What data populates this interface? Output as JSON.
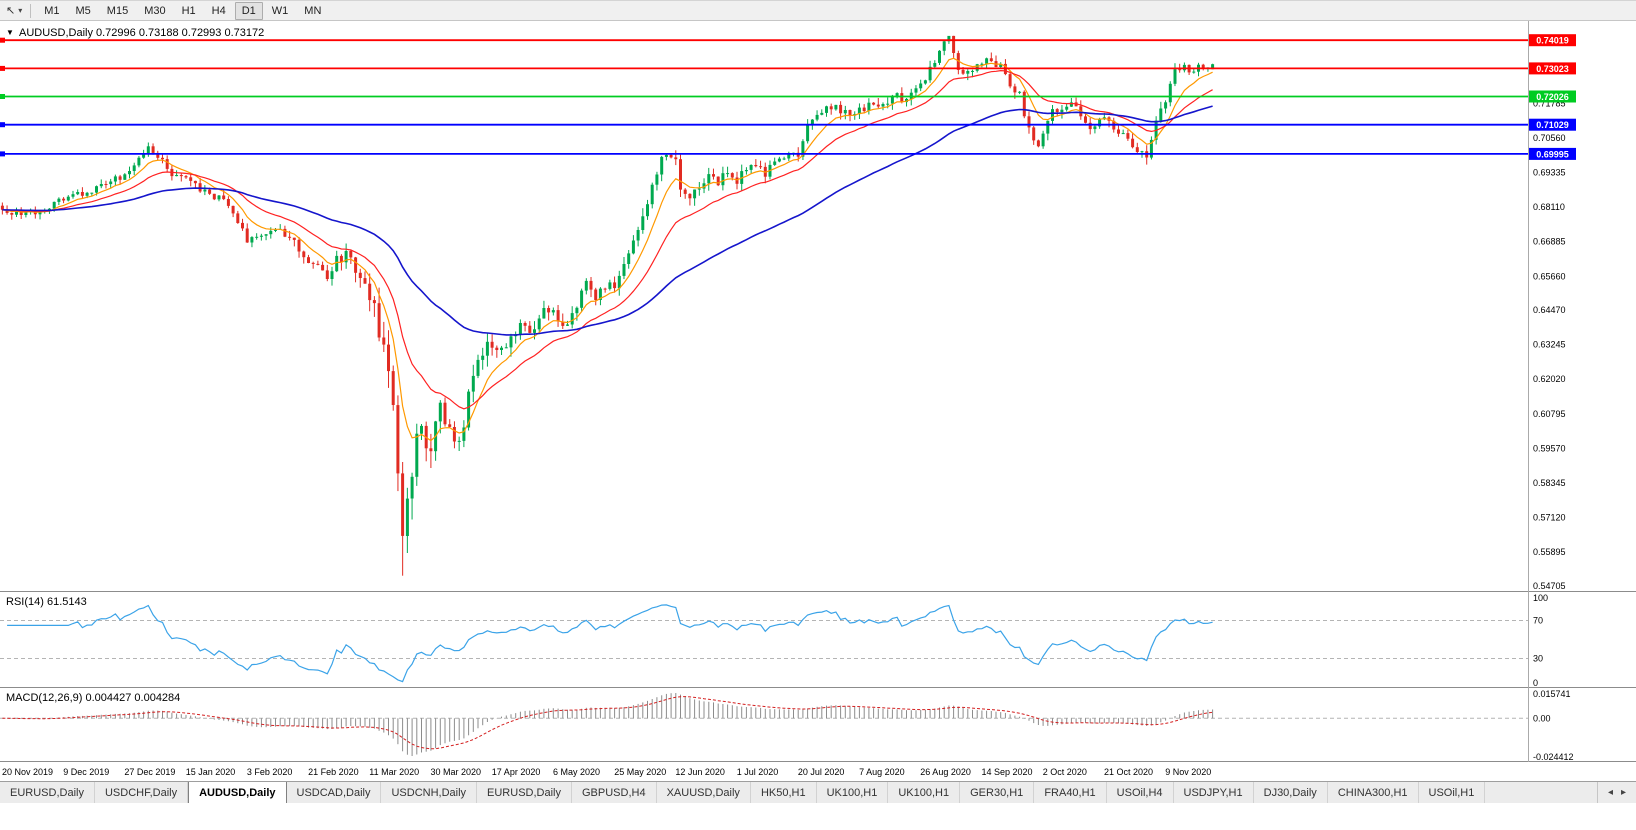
{
  "toolbar": {
    "cursor_glyph": "↖",
    "caret_glyph": "▾",
    "timeframes": [
      "M1",
      "M5",
      "M15",
      "M30",
      "H1",
      "H4",
      "D1",
      "W1",
      "MN"
    ],
    "active_timeframe": "D1"
  },
  "chart": {
    "collapse_glyph": "▼",
    "title_line": "AUDUSD,Daily  0.72996 0.73188 0.72993 0.73172",
    "symbol": "AUDUSD",
    "period": "Daily",
    "levels": [
      {
        "value": 0.74019,
        "label": "0.74019",
        "color": "#ff0000"
      },
      {
        "value": 0.73023,
        "label": "0.73023",
        "color": "#ff0000"
      },
      {
        "value": 0.72026,
        "label": "0.72026",
        "color": "#00cc22"
      },
      {
        "value": 0.71029,
        "label": "0.71029",
        "color": "#0000ff"
      },
      {
        "value": 0.69995,
        "label": "0.69995",
        "color": "#0000ff"
      }
    ],
    "y_ticks": [
      "0.71785",
      "0.70560",
      "0.69335",
      "0.68110",
      "0.66885",
      "0.65660",
      "0.64470",
      "0.63245",
      "0.62020",
      "0.60795",
      "0.59570",
      "0.58345",
      "0.57120",
      "0.55895",
      "0.54705"
    ],
    "x_labels": [
      "20 Nov 2019",
      "9 Dec 2019",
      "27 Dec 2019",
      "15 Jan 2020",
      "3 Feb 2020",
      "21 Feb 2020",
      "11 Mar 2020",
      "30 Mar 2020",
      "17 Apr 2020",
      "6 May 2020",
      "25 May 2020",
      "12 Jun 2020",
      "1 Jul 2020",
      "20 Jul 2020",
      "7 Aug 2020",
      "26 Aug 2020",
      "14 Sep 2020",
      "2 Oct 2020",
      "21 Oct 2020",
      "9 Nov 2020"
    ]
  },
  "rsi": {
    "title": "RSI(14) 61.5143",
    "period": 14,
    "value": 61.5143,
    "ticks": [
      "100",
      "70",
      "30",
      "0"
    ],
    "dashed_levels": [
      70,
      30
    ]
  },
  "macd": {
    "title": "MACD(12,26,9) 0.004427 0.004284",
    "fast": 12,
    "slow": 26,
    "signal": 9,
    "values": [
      0.004427,
      0.004284
    ],
    "ticks": [
      "0.015741",
      "0.00",
      "-0.024412"
    ]
  },
  "colors": {
    "up": "#00a94f",
    "down": "#e12b22",
    "ma_fast": "#ff9900",
    "ma_mid": "#ff2222",
    "ma_slow": "#1515cc",
    "rsi": "#3ba3e8",
    "macd_hist": "#8c8c8c",
    "macd_signal": "#d42020"
  },
  "chart_data": {
    "type": "candlestick",
    "symbol": "AUDUSD",
    "timeframe": "Daily",
    "current": {
      "open": 0.72996,
      "high": 0.73188,
      "low": 0.72993,
      "close": 0.73172
    },
    "price_axis": {
      "max": 0.747,
      "min": 0.5452
    },
    "candle_count": 258,
    "candles_pixel_span": 1215,
    "label_every": 13,
    "seed": 7,
    "price_anchors": [
      [
        0,
        0.6808
      ],
      [
        4,
        0.6782
      ],
      [
        8,
        0.68
      ],
      [
        13,
        0.6838
      ],
      [
        18,
        0.6862
      ],
      [
        22,
        0.6895
      ],
      [
        26,
        0.6922
      ],
      [
        29,
        0.6988
      ],
      [
        31,
        0.7022
      ],
      [
        33,
        0.6996
      ],
      [
        36,
        0.6932
      ],
      [
        39,
        0.6906
      ],
      [
        43,
        0.6862
      ],
      [
        47,
        0.684
      ],
      [
        50,
        0.6762
      ],
      [
        52,
        0.6696
      ],
      [
        55,
        0.6716
      ],
      [
        58,
        0.673
      ],
      [
        61,
        0.6702
      ],
      [
        64,
        0.6642
      ],
      [
        67,
        0.6592
      ],
      [
        69,
        0.6556
      ],
      [
        71,
        0.662
      ],
      [
        73,
        0.6652
      ],
      [
        75,
        0.6592
      ],
      [
        77,
        0.6522
      ],
      [
        79,
        0.6452
      ],
      [
        81,
        0.6322
      ],
      [
        83,
        0.6112
      ],
      [
        84,
        0.5882
      ],
      [
        85,
        0.5602
      ],
      [
        86,
        0.5752
      ],
      [
        87,
        0.5822
      ],
      [
        88,
        0.5982
      ],
      [
        89,
        0.6052
      ],
      [
        90,
        0.5962
      ],
      [
        91,
        0.5982
      ],
      [
        93,
        0.6092
      ],
      [
        95,
        0.6012
      ],
      [
        97,
        0.5962
      ],
      [
        99,
        0.6152
      ],
      [
        101,
        0.6282
      ],
      [
        104,
        0.6332
      ],
      [
        106,
        0.6292
      ],
      [
        108,
        0.6362
      ],
      [
        110,
        0.6402
      ],
      [
        112,
        0.6356
      ],
      [
        114,
        0.6432
      ],
      [
        117,
        0.6456
      ],
      [
        119,
        0.6392
      ],
      [
        121,
        0.6422
      ],
      [
        124,
        0.6542
      ],
      [
        126,
        0.6492
      ],
      [
        128,
        0.6522
      ],
      [
        130,
        0.6542
      ],
      [
        132,
        0.6622
      ],
      [
        134,
        0.6692
      ],
      [
        136,
        0.6792
      ],
      [
        138,
        0.6882
      ],
      [
        140,
        0.6982
      ],
      [
        141,
        0.7012
      ],
      [
        143,
        0.6996
      ],
      [
        144,
        0.6882
      ],
      [
        146,
        0.6856
      ],
      [
        148,
        0.6882
      ],
      [
        150,
        0.6922
      ],
      [
        152,
        0.6902
      ],
      [
        154,
        0.6932
      ],
      [
        156,
        0.6906
      ],
      [
        158,
        0.6942
      ],
      [
        160,
        0.6962
      ],
      [
        162,
        0.6932
      ],
      [
        164,
        0.6976
      ],
      [
        166,
        0.6992
      ],
      [
        169,
        0.7002
      ],
      [
        171,
        0.7092
      ],
      [
        173,
        0.7132
      ],
      [
        175,
        0.7156
      ],
      [
        177,
        0.7172
      ],
      [
        179,
        0.7142
      ],
      [
        182,
        0.7156
      ],
      [
        184,
        0.7176
      ],
      [
        186,
        0.7156
      ],
      [
        188,
        0.7192
      ],
      [
        190,
        0.7216
      ],
      [
        192,
        0.7182
      ],
      [
        195,
        0.7236
      ],
      [
        197,
        0.7302
      ],
      [
        199,
        0.7372
      ],
      [
        201,
        0.7402
      ],
      [
        202,
        0.7342
      ],
      [
        203,
        0.7292
      ],
      [
        205,
        0.7286
      ],
      [
        207,
        0.7302
      ],
      [
        208,
        0.7316
      ],
      [
        210,
        0.7332
      ],
      [
        212,
        0.7302
      ],
      [
        214,
        0.7252
      ],
      [
        216,
        0.7216
      ],
      [
        218,
        0.7082
      ],
      [
        220,
        0.7042
      ],
      [
        221,
        0.7086
      ],
      [
        223,
        0.7142
      ],
      [
        225,
        0.7166
      ],
      [
        227,
        0.7182
      ],
      [
        229,
        0.7136
      ],
      [
        231,
        0.7082
      ],
      [
        234,
        0.7122
      ],
      [
        236,
        0.7096
      ],
      [
        238,
        0.7062
      ],
      [
        240,
        0.7036
      ],
      [
        242,
        0.7006
      ],
      [
        243,
        0.6996
      ],
      [
        244,
        0.7062
      ],
      [
        245,
        0.7122
      ],
      [
        246,
        0.7162
      ],
      [
        247,
        0.7186
      ],
      [
        248,
        0.7252
      ],
      [
        249,
        0.7286
      ],
      [
        250,
        0.7302
      ],
      [
        251,
        0.7316
      ],
      [
        252,
        0.7302
      ],
      [
        253,
        0.7292
      ],
      [
        254,
        0.7312
      ],
      [
        255,
        0.7302
      ],
      [
        256,
        0.7296
      ],
      [
        257,
        0.7317
      ]
    ],
    "volatility_anchors": [
      [
        0,
        0.002
      ],
      [
        55,
        0.0022
      ],
      [
        70,
        0.003
      ],
      [
        78,
        0.0048
      ],
      [
        83,
        0.0085
      ],
      [
        85,
        0.011
      ],
      [
        88,
        0.0085
      ],
      [
        92,
        0.0062
      ],
      [
        100,
        0.0048
      ],
      [
        110,
        0.0036
      ],
      [
        125,
        0.003
      ],
      [
        138,
        0.0034
      ],
      [
        146,
        0.003
      ],
      [
        170,
        0.0024
      ],
      [
        196,
        0.0028
      ],
      [
        205,
        0.0026
      ],
      [
        216,
        0.003
      ],
      [
        230,
        0.0024
      ],
      [
        244,
        0.003
      ],
      [
        257,
        0.002
      ]
    ],
    "forced_extremes": {
      "85": {
        "low": 0.5506
      },
      "201": {
        "high": 0.7414
      }
    },
    "moving_averages": [
      {
        "name": "fast",
        "period": 8,
        "color": "#ff9900",
        "width": 1.2
      },
      {
        "name": "mid",
        "period": 20,
        "color": "#ff2222",
        "width": 1.2
      },
      {
        "name": "slow",
        "period": 60,
        "color": "#1515cc",
        "width": 1.6
      }
    ]
  },
  "tabs": {
    "scroll_left_glyph": "◂",
    "scroll_right_glyph": "▸",
    "items": [
      {
        "label": "EURUSD,Daily",
        "active": false
      },
      {
        "label": "USDCHF,Daily",
        "active": false
      },
      {
        "label": "AUDUSD,Daily",
        "active": true
      },
      {
        "label": "USDCAD,Daily",
        "active": false
      },
      {
        "label": "USDCNH,Daily",
        "active": false
      },
      {
        "label": "EURUSD,Daily",
        "active": false
      },
      {
        "label": "GBPUSD,H4",
        "active": false
      },
      {
        "label": "XAUUSD,Daily",
        "active": false
      },
      {
        "label": "HK50,H1",
        "active": false
      },
      {
        "label": "UK100,H1",
        "active": false
      },
      {
        "label": "UK100,H1",
        "active": false
      },
      {
        "label": "GER30,H1",
        "active": false
      },
      {
        "label": "FRA40,H1",
        "active": false
      },
      {
        "label": "USOil,H4",
        "active": false
      },
      {
        "label": "USDJPY,H1",
        "active": false
      },
      {
        "label": "DJ30,Daily",
        "active": false
      },
      {
        "label": "CHINA300,H1",
        "active": false
      },
      {
        "label": "USOil,H1",
        "active": false
      }
    ]
  }
}
